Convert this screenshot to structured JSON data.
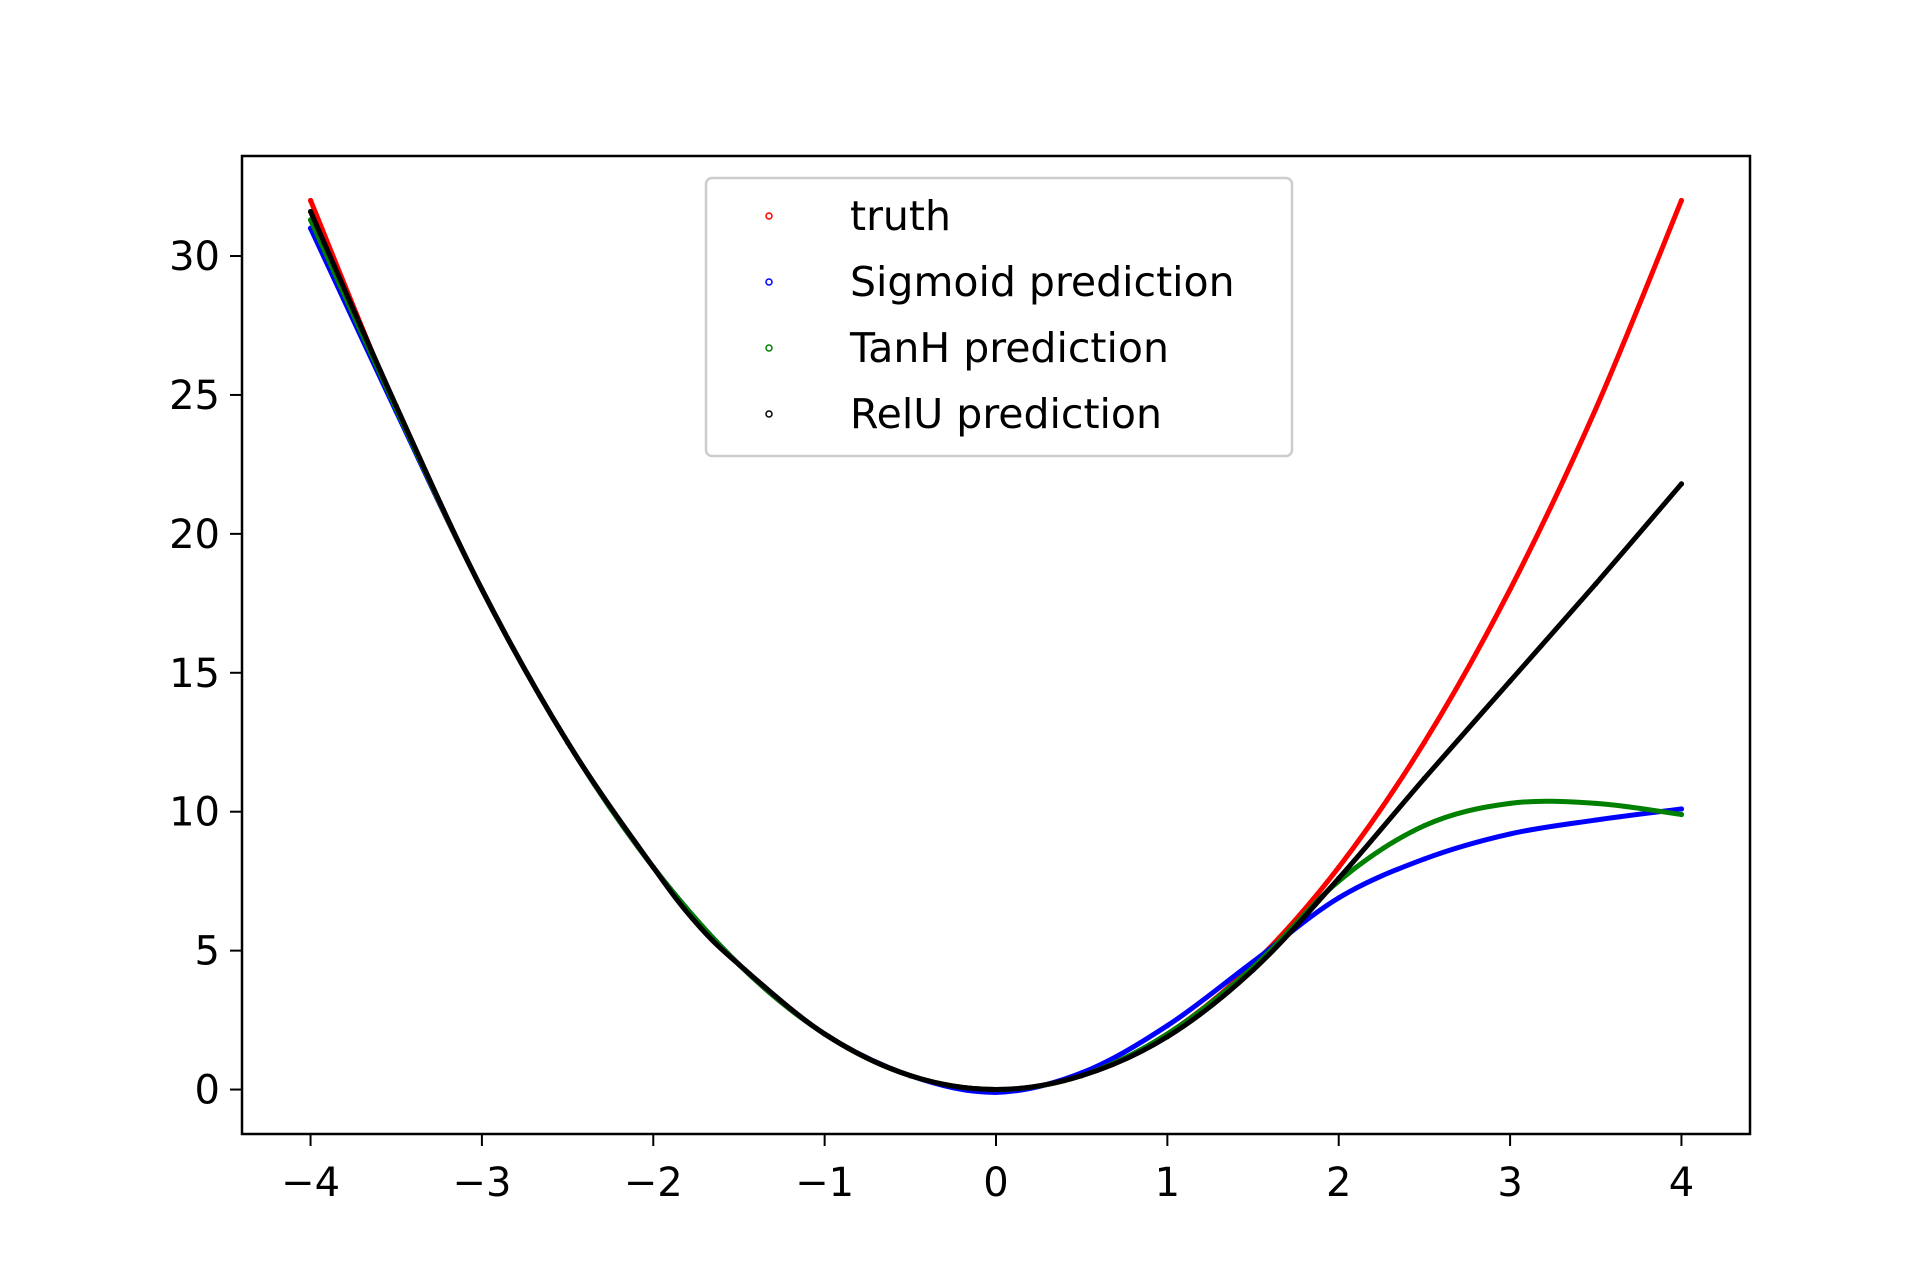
{
  "chart_data": {
    "type": "scatter",
    "title": "",
    "xlabel": "",
    "ylabel": "",
    "xlim": [
      -4.4,
      4.4
    ],
    "ylim": [
      -1.6,
      33.6
    ],
    "x_ticks": [
      -4,
      -3,
      -2,
      -1,
      0,
      1,
      2,
      3,
      4
    ],
    "x_tick_labels": [
      "−4",
      "−3",
      "−2",
      "−1",
      "0",
      "1",
      "2",
      "3",
      "4"
    ],
    "y_ticks": [
      0,
      5,
      10,
      15,
      20,
      25,
      30
    ],
    "y_tick_labels": [
      "0",
      "5",
      "10",
      "15",
      "20",
      "25",
      "30"
    ],
    "grid": false,
    "legend_position": "top-center",
    "series": [
      {
        "name": "truth",
        "color": "#ff0000",
        "x": [
          -4,
          -3.5,
          -3,
          -2.5,
          -2,
          -1.5,
          -1,
          -0.5,
          0,
          0.5,
          1,
          1.5,
          2,
          2.5,
          3,
          3.5,
          4
        ],
        "y": [
          32,
          24.5,
          18,
          12.5,
          8,
          4.5,
          2,
          0.5,
          0,
          0.5,
          2,
          4.5,
          8,
          12.5,
          18,
          24.5,
          32
        ]
      },
      {
        "name": "Sigmoid prediction",
        "color": "#0000ff",
        "x": [
          -4,
          -3.5,
          -3,
          -2.5,
          -2,
          -1.5,
          -1,
          -0.5,
          0,
          0.5,
          1,
          1.5,
          2,
          2.5,
          3,
          3.5,
          4
        ],
        "y": [
          31.0,
          24.4,
          18.0,
          12.5,
          8.0,
          4.5,
          2.0,
          0.5,
          -0.1,
          0.6,
          2.3,
          4.6,
          6.9,
          8.3,
          9.2,
          9.7,
          10.1
        ]
      },
      {
        "name": "TanH prediction",
        "color": "#008000",
        "x": [
          -4,
          -3.5,
          -3,
          -2.5,
          -2,
          -1.5,
          -1,
          -0.5,
          0,
          0.5,
          1,
          1.5,
          2,
          2.5,
          3,
          3.5,
          4
        ],
        "y": [
          31.3,
          24.5,
          18.0,
          12.5,
          8.0,
          4.5,
          2.0,
          0.5,
          0.0,
          0.5,
          2.0,
          4.4,
          7.5,
          9.5,
          10.3,
          10.3,
          9.9
        ]
      },
      {
        "name": "RelU prediction",
        "color": "#000000",
        "x": [
          -4,
          -3.5,
          -3,
          -2.5,
          -2,
          -1.75,
          -1.5,
          -1,
          -0.5,
          0,
          0.5,
          1,
          1.5,
          2,
          2.5,
          3,
          3.5,
          4
        ],
        "y": [
          31.6,
          24.6,
          18.0,
          12.5,
          8.0,
          6.0,
          4.5,
          2.0,
          0.5,
          0.0,
          0.5,
          1.9,
          4.3,
          7.6,
          11.2,
          14.7,
          18.2,
          21.8
        ]
      }
    ]
  }
}
